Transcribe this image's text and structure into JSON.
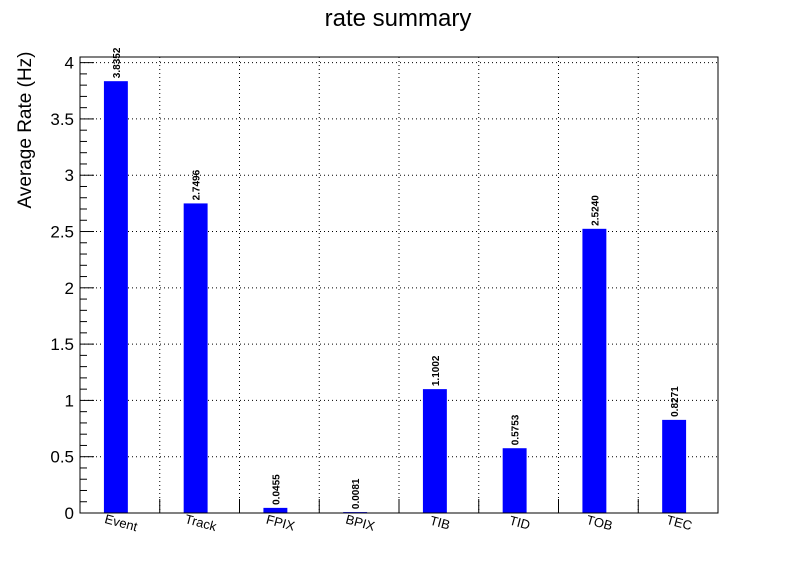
{
  "chart_data": {
    "type": "bar",
    "title": "rate summary",
    "xlabel": "",
    "ylabel": "Average Rate (Hz)",
    "categories": [
      "Event",
      "Track",
      "FPIX",
      "BPIX",
      "TIB",
      "TID",
      "TOB",
      "TEC"
    ],
    "values": [
      3.8352,
      2.7496,
      0.0455,
      0.0081,
      1.1002,
      0.5753,
      2.524,
      0.8271
    ],
    "value_labels": [
      "3.8352",
      "2.7496",
      "0.0455",
      "0.0081",
      "1.1002",
      "0.5753",
      "2.5240",
      "0.8271"
    ],
    "ylim": [
      0,
      4.05
    ],
    "yticks": [
      0,
      0.5,
      1,
      1.5,
      2,
      2.5,
      3,
      3.5,
      4
    ],
    "ytick_labels": [
      "0",
      "0.5",
      "1",
      "1.5",
      "2",
      "2.5",
      "3",
      "3.5",
      "4"
    ],
    "grid": true,
    "bar_color": "#0000ff"
  }
}
